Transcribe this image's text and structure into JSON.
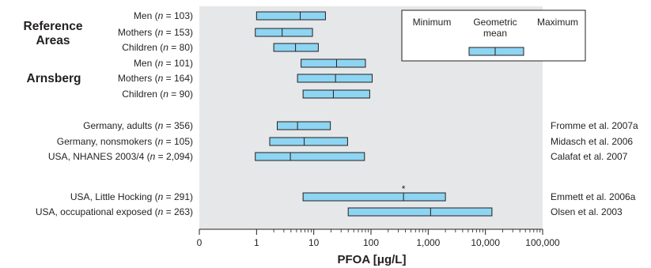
{
  "chart_data": {
    "type": "range",
    "x_scale": "log",
    "xlim": [
      0,
      100000
    ],
    "xlabel": "PFOA [μg/L]",
    "x_ticks": [
      "0",
      "1",
      "10",
      "100",
      "1,000",
      "10,000",
      "100,000"
    ],
    "grid": false,
    "legend": {
      "position": "top-right",
      "labels": [
        "Minimum",
        "Geometric\nmean",
        "Maximum"
      ]
    },
    "groups": [
      "Reference\nAreas",
      "Arnsberg"
    ],
    "colors": {
      "box_fill": "#8dd5f2",
      "plot_bg": "#e6e7e8",
      "stroke": "#231f20"
    },
    "rows": [
      {
        "label_prefix": "Men (",
        "n_var": "n",
        "label_suffix": " = 103)",
        "min": 1,
        "gm": 5.8,
        "max": 16,
        "reference": ""
      },
      {
        "label_prefix": "Mothers (",
        "n_var": "n",
        "label_suffix": " = 153)",
        "min": 0.95,
        "gm": 2.8,
        "max": 9.5,
        "reference": ""
      },
      {
        "label_prefix": "Children (",
        "n_var": "n",
        "label_suffix": " = 80)",
        "min": 2,
        "gm": 4.8,
        "max": 12,
        "reference": ""
      },
      {
        "label_prefix": "Men (",
        "n_var": "n",
        "label_suffix": " = 101)",
        "min": 6,
        "gm": 25,
        "max": 80,
        "reference": ""
      },
      {
        "label_prefix": "Mothers (",
        "n_var": "n",
        "label_suffix": " = 164)",
        "min": 5.2,
        "gm": 24,
        "max": 105,
        "reference": ""
      },
      {
        "label_prefix": "Children (",
        "n_var": "n",
        "label_suffix": " = 90)",
        "min": 6.5,
        "gm": 22,
        "max": 95,
        "reference": ""
      },
      {
        "label_prefix": "Germany, adults (",
        "n_var": "n",
        "label_suffix": " = 356)",
        "min": 2.3,
        "gm": 5.2,
        "max": 19.5,
        "reference": "Fromme et al. 2007a"
      },
      {
        "label_prefix": "Germany, nonsmokers (",
        "n_var": "n",
        "label_suffix": " = 105)",
        "min": 1.7,
        "gm": 6.8,
        "max": 39,
        "reference": "Midasch et al. 2006"
      },
      {
        "label_prefix": "USA, NHANES 2003/4 (",
        "n_var": "n",
        "label_suffix": " = 2,094)",
        "min": 0.95,
        "gm": 3.9,
        "max": 77,
        "reference": "Calafat et al. 2007"
      },
      {
        "label_prefix": "USA, Little Hocking (",
        "n_var": "n",
        "label_suffix": " = 291)",
        "min": 6.5,
        "gm": 370,
        "max": 2000,
        "reference": "Emmett et al. 2006a",
        "marker": "*"
      },
      {
        "label_prefix": "USA, occupational exposed (",
        "n_var": "n",
        "label_suffix": " = 263)",
        "min": 40,
        "gm": 1100,
        "max": 13000,
        "reference": "Olsen et al. 2003"
      }
    ]
  }
}
